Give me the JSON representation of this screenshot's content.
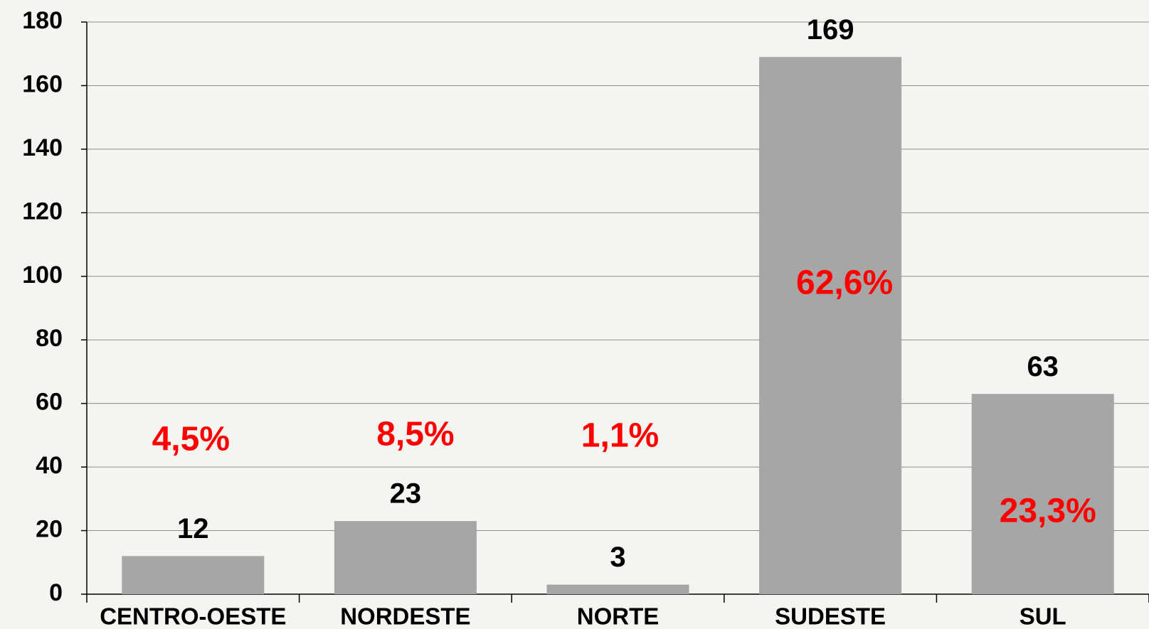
{
  "chart_data": {
    "type": "bar",
    "categories": [
      "CENTRO-OESTE",
      "NORDESTE",
      "NORTE",
      "SUDESTE",
      "SUL"
    ],
    "values": [
      12,
      23,
      3,
      169,
      63
    ],
    "color": "#a6a6a6",
    "annotations": [
      "4,5%",
      "8,5%",
      "1,1%",
      "62,6%",
      "23,3%"
    ],
    "annotation_color": "#ff0000",
    "ylim": [
      0,
      180
    ],
    "yticks": [
      0,
      20,
      40,
      60,
      80,
      100,
      120,
      140,
      160,
      180
    ],
    "grid": true
  }
}
